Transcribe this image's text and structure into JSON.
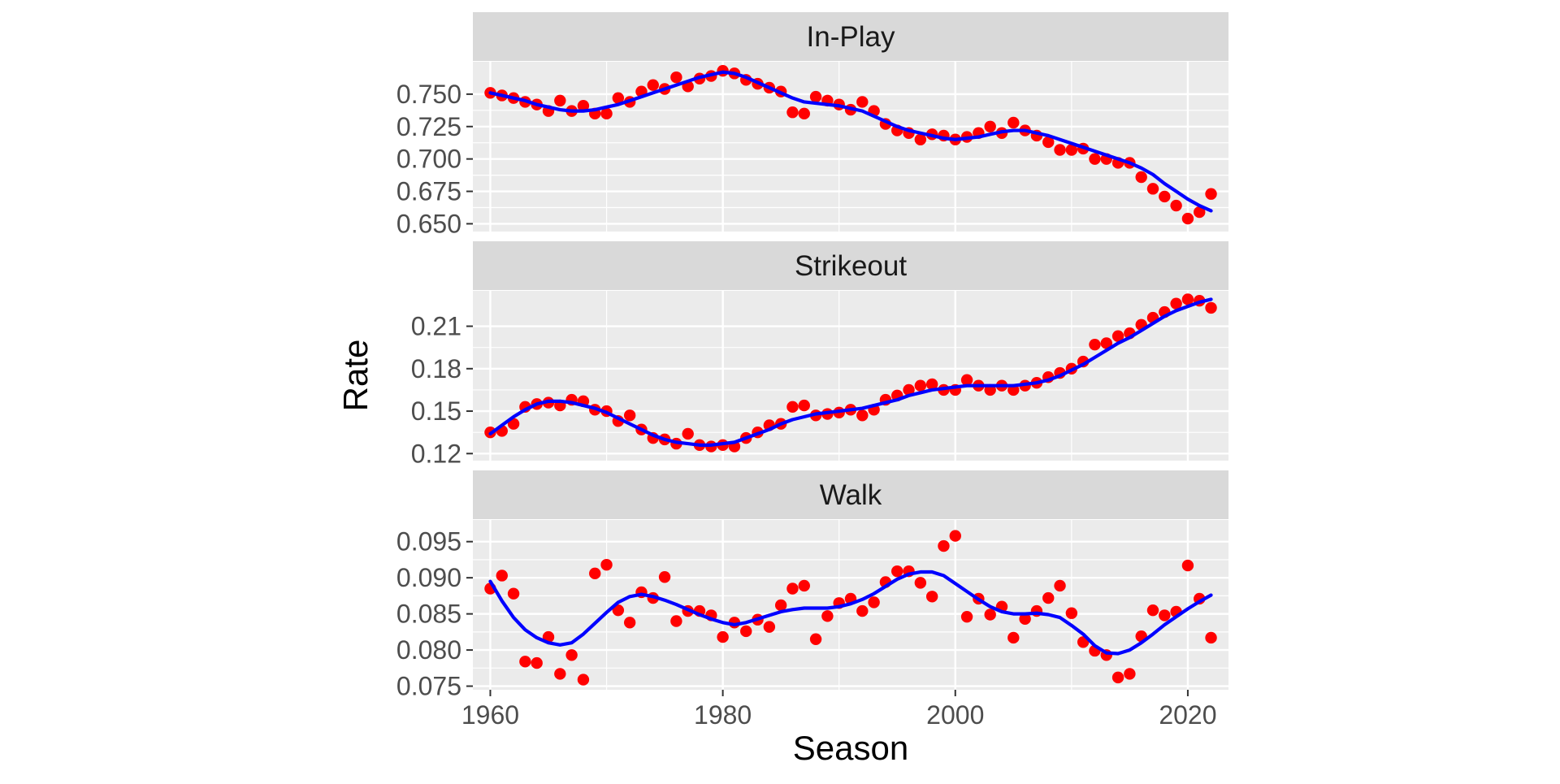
{
  "chart_data": {
    "type": "scatter",
    "xlabel": "Season",
    "ylabel": "Rate",
    "x_ticks": [
      1960,
      1980,
      2000,
      2020
    ],
    "xlim": [
      1958.5,
      2023.5
    ],
    "grid": true,
    "legend": "none",
    "colors": {
      "points": "#ff0000",
      "smooth": "#0000ff",
      "panel": "#ebebeb",
      "strip": "#d9d9d9",
      "grid": "#ffffff",
      "tick_text": "#4d4d4d"
    },
    "seasons": [
      1960,
      1961,
      1962,
      1963,
      1964,
      1965,
      1966,
      1967,
      1968,
      1969,
      1970,
      1971,
      1972,
      1973,
      1974,
      1975,
      1976,
      1977,
      1978,
      1979,
      1980,
      1981,
      1982,
      1983,
      1984,
      1985,
      1986,
      1987,
      1988,
      1989,
      1990,
      1991,
      1992,
      1993,
      1994,
      1995,
      1996,
      1997,
      1998,
      1999,
      2000,
      2001,
      2002,
      2003,
      2004,
      2005,
      2006,
      2007,
      2008,
      2009,
      2010,
      2011,
      2012,
      2013,
      2014,
      2015,
      2016,
      2017,
      2018,
      2019,
      2020,
      2021,
      2022
    ],
    "panels": [
      {
        "name": "In-Play",
        "ylim": [
          0.644,
          0.775
        ],
        "y_ticks": [
          0.65,
          0.675,
          0.7,
          0.725,
          0.75
        ],
        "y_tick_labels": [
          "0.650",
          "0.675",
          "0.700",
          "0.725",
          "0.750"
        ],
        "values": [
          0.751,
          0.749,
          0.747,
          0.744,
          0.742,
          0.737,
          0.745,
          0.737,
          0.741,
          0.735,
          0.735,
          0.747,
          0.744,
          0.752,
          0.757,
          0.754,
          0.763,
          0.756,
          0.762,
          0.764,
          0.768,
          0.766,
          0.761,
          0.758,
          0.755,
          0.752,
          0.736,
          0.735,
          0.748,
          0.745,
          0.742,
          0.738,
          0.744,
          0.737,
          0.727,
          0.722,
          0.72,
          0.715,
          0.719,
          0.718,
          0.715,
          0.717,
          0.72,
          0.725,
          0.72,
          0.728,
          0.722,
          0.718,
          0.713,
          0.707,
          0.707,
          0.708,
          0.7,
          0.7,
          0.697,
          0.697,
          0.686,
          0.677,
          0.671,
          0.664,
          0.654,
          0.659,
          0.673
        ],
        "smooth": [
          0.751,
          0.749,
          0.747,
          0.745,
          0.742,
          0.74,
          0.738,
          0.737,
          0.737,
          0.738,
          0.74,
          0.742,
          0.745,
          0.748,
          0.751,
          0.754,
          0.757,
          0.76,
          0.763,
          0.765,
          0.767,
          0.766,
          0.763,
          0.759,
          0.755,
          0.751,
          0.747,
          0.744,
          0.743,
          0.742,
          0.741,
          0.739,
          0.737,
          0.733,
          0.729,
          0.725,
          0.722,
          0.72,
          0.718,
          0.716,
          0.715,
          0.716,
          0.717,
          0.719,
          0.721,
          0.722,
          0.722,
          0.72,
          0.718,
          0.715,
          0.712,
          0.709,
          0.706,
          0.703,
          0.7,
          0.697,
          0.693,
          0.688,
          0.681,
          0.675,
          0.669,
          0.664,
          0.66
        ]
      },
      {
        "name": "Strikeout",
        "ylim": [
          0.115,
          0.235
        ],
        "y_ticks": [
          0.12,
          0.15,
          0.18,
          0.21
        ],
        "y_tick_labels": [
          "0.12",
          "0.15",
          "0.18",
          "0.21"
        ],
        "values": [
          0.135,
          0.136,
          0.141,
          0.153,
          0.155,
          0.156,
          0.154,
          0.158,
          0.157,
          0.151,
          0.15,
          0.143,
          0.147,
          0.137,
          0.131,
          0.13,
          0.127,
          0.134,
          0.126,
          0.125,
          0.126,
          0.125,
          0.131,
          0.135,
          0.14,
          0.141,
          0.153,
          0.154,
          0.147,
          0.148,
          0.149,
          0.151,
          0.147,
          0.151,
          0.158,
          0.161,
          0.165,
          0.168,
          0.169,
          0.165,
          0.165,
          0.172,
          0.168,
          0.165,
          0.168,
          0.165,
          0.168,
          0.17,
          0.174,
          0.177,
          0.18,
          0.185,
          0.197,
          0.198,
          0.203,
          0.205,
          0.211,
          0.216,
          0.22,
          0.226,
          0.229,
          0.228,
          0.223
        ],
        "smooth": [
          0.134,
          0.14,
          0.146,
          0.151,
          0.155,
          0.157,
          0.157,
          0.156,
          0.154,
          0.152,
          0.149,
          0.145,
          0.141,
          0.137,
          0.133,
          0.13,
          0.128,
          0.127,
          0.126,
          0.126,
          0.127,
          0.128,
          0.131,
          0.134,
          0.137,
          0.141,
          0.144,
          0.146,
          0.148,
          0.149,
          0.15,
          0.151,
          0.152,
          0.154,
          0.156,
          0.158,
          0.161,
          0.163,
          0.165,
          0.166,
          0.167,
          0.168,
          0.168,
          0.168,
          0.168,
          0.168,
          0.169,
          0.17,
          0.172,
          0.175,
          0.179,
          0.183,
          0.188,
          0.193,
          0.198,
          0.202,
          0.207,
          0.212,
          0.217,
          0.221,
          0.224,
          0.227,
          0.229
        ]
      },
      {
        "name": "Walk",
        "ylim": [
          0.0745,
          0.098
        ],
        "y_ticks": [
          0.075,
          0.08,
          0.085,
          0.09,
          0.095
        ],
        "y_tick_labels": [
          "0.075",
          "0.080",
          "0.085",
          "0.090",
          "0.095"
        ],
        "values": [
          0.0885,
          0.0903,
          0.0878,
          0.0784,
          0.0782,
          0.0818,
          0.0767,
          0.0793,
          0.0759,
          0.0906,
          0.0918,
          0.0855,
          0.0838,
          0.088,
          0.0872,
          0.0901,
          0.084,
          0.0854,
          0.0854,
          0.0848,
          0.0818,
          0.0838,
          0.0826,
          0.0842,
          0.0832,
          0.0862,
          0.0885,
          0.0889,
          0.0815,
          0.0847,
          0.0865,
          0.0871,
          0.0854,
          0.0866,
          0.0894,
          0.0909,
          0.0909,
          0.0893,
          0.0874,
          0.0944,
          0.0958,
          0.0846,
          0.0871,
          0.0849,
          0.086,
          0.0817,
          0.0843,
          0.0854,
          0.0872,
          0.0889,
          0.0851,
          0.0811,
          0.0799,
          0.0793,
          0.0762,
          0.0767,
          0.0819,
          0.0855,
          0.0848,
          0.0853,
          0.0917,
          0.0871,
          0.0817
        ],
        "smooth": [
          0.0895,
          0.0868,
          0.0845,
          0.0828,
          0.0817,
          0.081,
          0.0807,
          0.081,
          0.0822,
          0.0837,
          0.0852,
          0.0866,
          0.0874,
          0.0877,
          0.0874,
          0.0869,
          0.0863,
          0.0856,
          0.0849,
          0.0843,
          0.0838,
          0.0835,
          0.0838,
          0.0843,
          0.0848,
          0.0853,
          0.0856,
          0.0858,
          0.0858,
          0.0858,
          0.086,
          0.0864,
          0.087,
          0.0878,
          0.0888,
          0.0898,
          0.0905,
          0.0908,
          0.0908,
          0.0903,
          0.0892,
          0.0881,
          0.087,
          0.086,
          0.0853,
          0.085,
          0.085,
          0.0851,
          0.0849,
          0.0845,
          0.0834,
          0.0822,
          0.0806,
          0.0796,
          0.0795,
          0.08,
          0.081,
          0.0822,
          0.0835,
          0.0846,
          0.0857,
          0.0867,
          0.0876
        ]
      }
    ]
  }
}
